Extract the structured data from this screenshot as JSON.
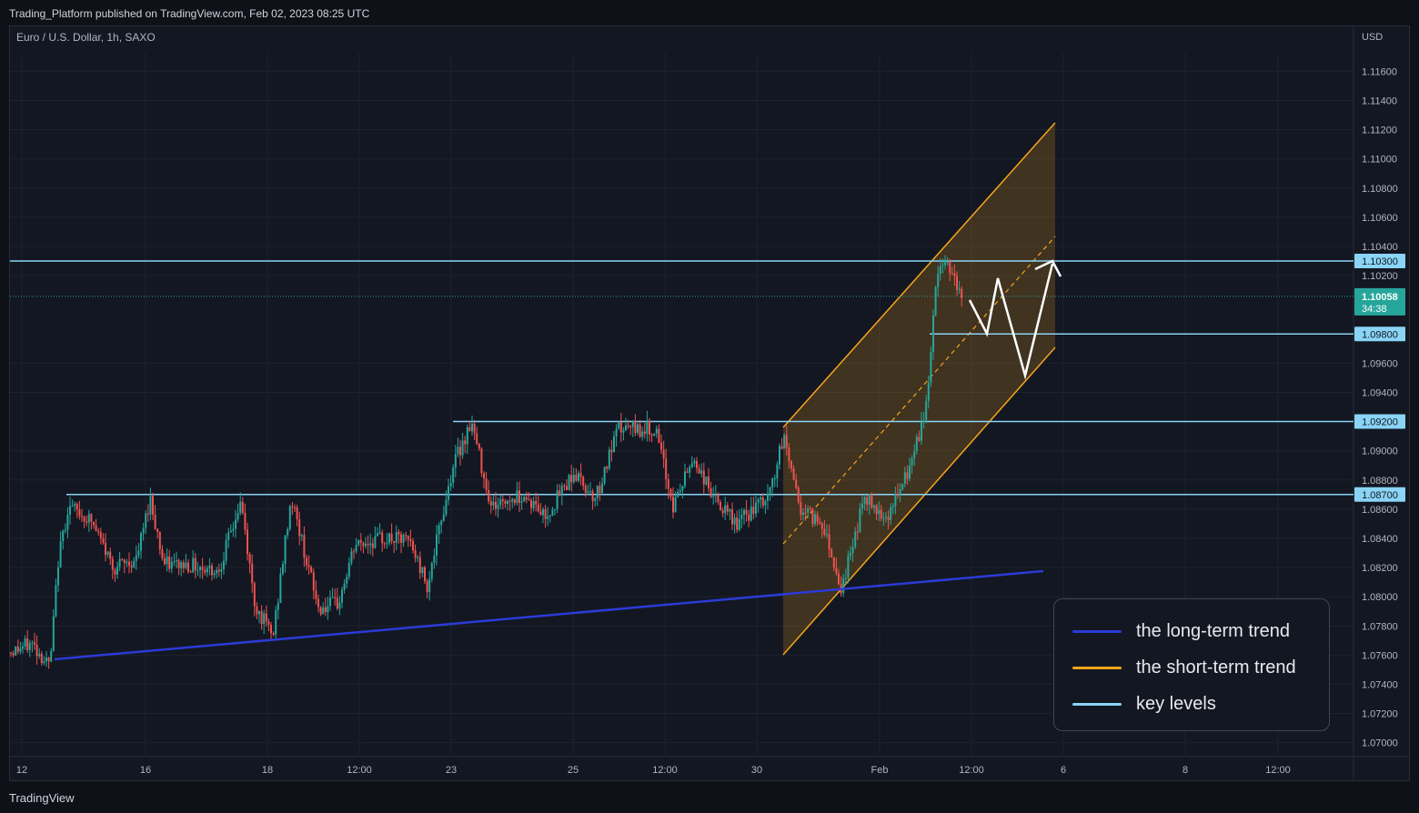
{
  "header": {
    "published": "Trading_Platform published on TradingView.com, Feb 02, 2023 08:25 UTC"
  },
  "footer": {
    "brand": "TradingView"
  },
  "chart_data": {
    "type": "candlestick",
    "symbol_line": "Euro / U.S. Dollar, 1h, SAXO",
    "currency": "USD",
    "y_ticks": [
      "1.11600",
      "1.11400",
      "1.11200",
      "1.11000",
      "1.10800",
      "1.10600",
      "1.10400",
      "1.10200",
      "1.09600",
      "1.09400",
      "1.09000",
      "1.08800",
      "1.08600",
      "1.08400",
      "1.08200",
      "1.08000",
      "1.07800",
      "1.07600",
      "1.07400",
      "1.07200",
      "1.07000"
    ],
    "y_range": [
      1.0695,
      1.1185
    ],
    "x_ticks": [
      "12",
      "16",
      "18",
      "12:00",
      "23",
      "25",
      "12:00",
      "30",
      "Feb",
      "12:00",
      "6",
      "8",
      "12:00"
    ],
    "last_price": {
      "value": "1.10058",
      "countdown": "34:38"
    },
    "key_levels": [
      {
        "label": "1.10300",
        "price": 1.103
      },
      {
        "label": "1.09800",
        "price": 1.098
      },
      {
        "label": "1.09200",
        "price": 1.092
      },
      {
        "label": "1.08700",
        "price": 1.087
      }
    ],
    "colors": {
      "background": "#131722",
      "up": "#26a69a",
      "down": "#ef5350",
      "long_term": "#2b3bd6",
      "short_term": "#f7a51b",
      "key_level": "#8ad4f5",
      "grid": "#1e222d",
      "text": "#b2b5be"
    },
    "legend": [
      {
        "label": "the long-term trend",
        "color": "#2b3bd6"
      },
      {
        "label": "the short-term trend",
        "color": "#f7a51b"
      },
      {
        "label": "key levels",
        "color": "#8ad4f5"
      }
    ]
  }
}
